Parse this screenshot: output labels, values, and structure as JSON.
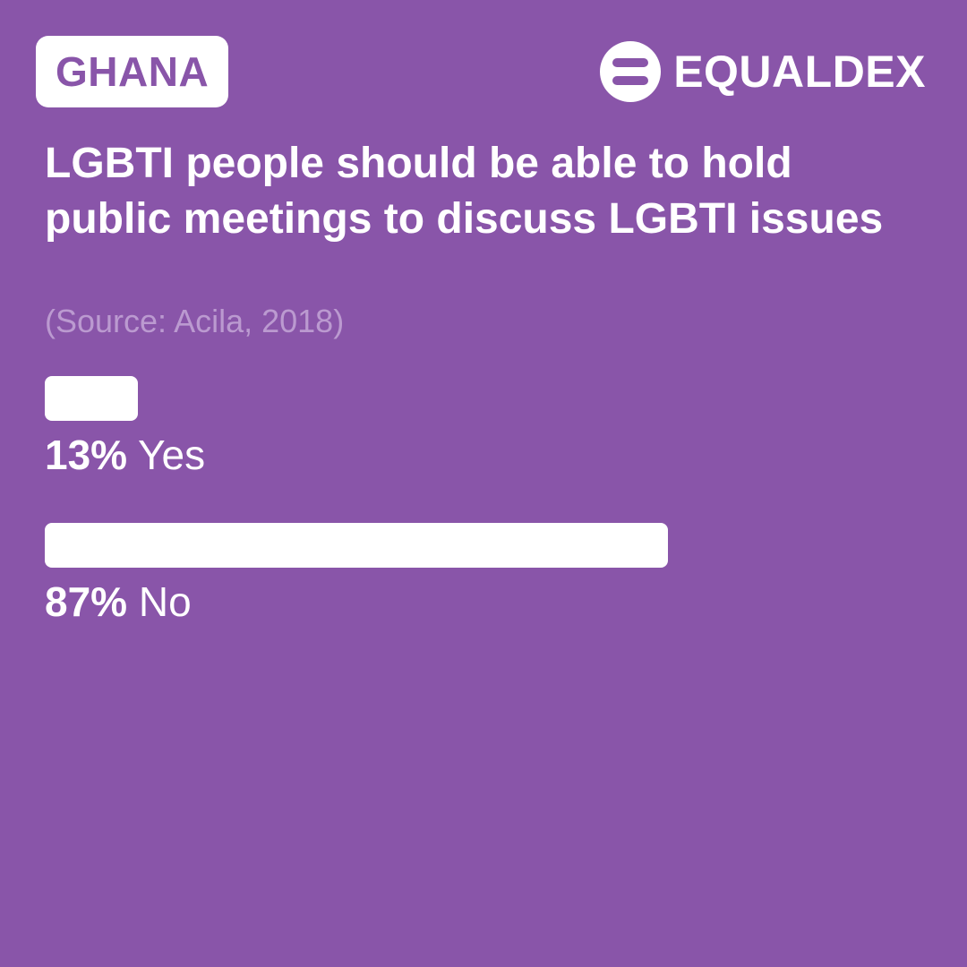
{
  "header": {
    "country": "GHANA",
    "brand_name": "EQUALDEX",
    "brand_icon": "equaldex-logo-icon"
  },
  "colors": {
    "background": "#8955A9",
    "bar": "#FFFFFF",
    "source_text": "#BB9AD0"
  },
  "chart_data": {
    "type": "bar",
    "orientation": "horizontal",
    "title": "LGBTI people should be able to hold public meetings to discuss LGBTI issues",
    "subtitle": "(Source: Acila, 2018)",
    "unit": "%",
    "xlim": [
      0,
      100
    ],
    "grid": false,
    "categories": [
      "Yes",
      "No"
    ],
    "values": [
      13,
      87
    ],
    "value_labels": [
      "13%",
      "87%"
    ]
  }
}
